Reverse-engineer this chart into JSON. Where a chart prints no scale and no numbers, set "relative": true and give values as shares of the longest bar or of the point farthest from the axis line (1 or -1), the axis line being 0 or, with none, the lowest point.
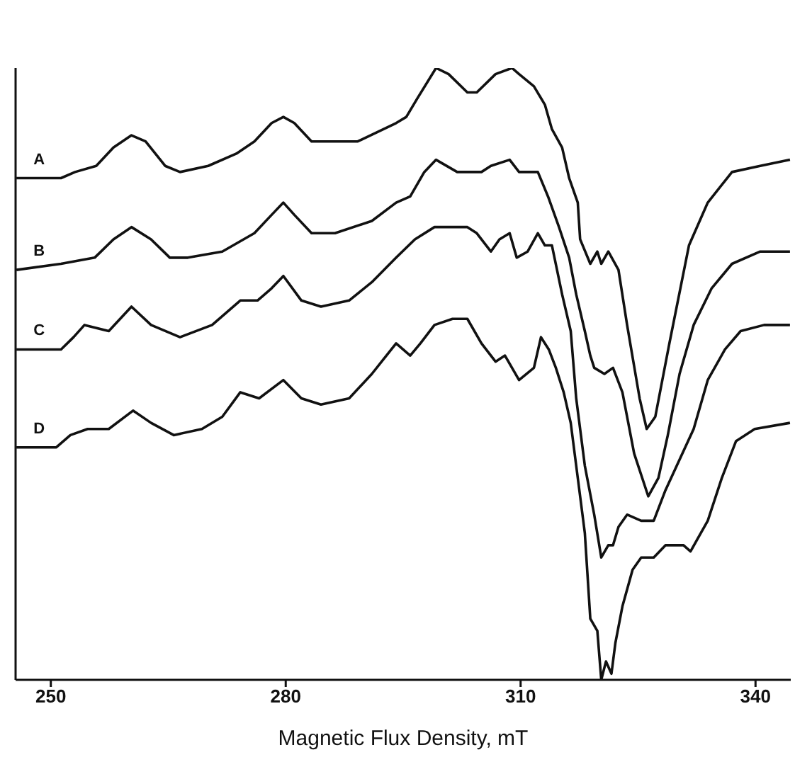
{
  "chart_data": {
    "type": "line",
    "xlabel": "Magnetic Flux Density, mT",
    "relative": true,
    "xlim": [
      245.5,
      344.5
    ],
    "xticks": [
      250,
      280,
      310,
      340
    ],
    "grid": false,
    "legend": false,
    "marker": "none",
    "line_style": "solid",
    "series": [
      {
        "name": "A",
        "color": "#111111",
        "x": [
          245.6,
          251.3,
          253.1,
          255.8,
          258.0,
          260.3,
          262.1,
          264.6,
          266.5,
          270.1,
          273.7,
          276.0,
          278.2,
          279.7,
          281.1,
          283.3,
          285.6,
          289.2,
          294.1,
          295.4,
          296.8,
          299.2,
          300.8,
          303.2,
          304.4,
          306.8,
          308.9,
          309.8,
          311.7,
          313.1,
          314.0,
          315.3,
          316.2,
          317.3,
          317.6,
          318.9,
          319.8,
          320.3,
          321.2,
          322.5,
          323.6,
          325.2,
          326.1,
          327.2,
          329.0,
          331.5,
          333.9,
          337.0,
          340.6,
          344.4
        ],
        "values": [
          0.82,
          0.82,
          0.83,
          0.84,
          0.87,
          0.89,
          0.88,
          0.84,
          0.83,
          0.84,
          0.86,
          0.88,
          0.91,
          0.92,
          0.91,
          0.88,
          0.88,
          0.88,
          0.91,
          0.92,
          0.95,
          1.0,
          0.99,
          0.96,
          0.96,
          0.99,
          1.0,
          0.99,
          0.97,
          0.94,
          0.9,
          0.87,
          0.82,
          0.78,
          0.72,
          0.68,
          0.7,
          0.68,
          0.7,
          0.67,
          0.58,
          0.46,
          0.41,
          0.43,
          0.55,
          0.71,
          0.78,
          0.83,
          0.84,
          0.85
        ]
      },
      {
        "name": "B",
        "color": "#111111",
        "x": [
          245.6,
          251.3,
          255.6,
          258.0,
          260.3,
          262.8,
          265.2,
          267.5,
          271.9,
          276.0,
          278.2,
          279.7,
          281.1,
          283.3,
          286.3,
          291.0,
          294.1,
          295.9,
          297.7,
          299.2,
          301.9,
          305.0,
          306.2,
          308.6,
          309.8,
          312.2,
          313.5,
          314.9,
          316.2,
          317.1,
          318.2,
          318.9,
          319.4,
          320.7,
          321.8,
          323.0,
          324.5,
          326.3,
          327.6,
          328.8,
          330.3,
          332.1,
          334.4,
          337.0,
          340.6,
          344.4
        ],
        "values": [
          0.67,
          0.68,
          0.69,
          0.72,
          0.74,
          0.72,
          0.69,
          0.69,
          0.7,
          0.73,
          0.76,
          0.78,
          0.76,
          0.73,
          0.73,
          0.75,
          0.78,
          0.79,
          0.83,
          0.85,
          0.83,
          0.83,
          0.84,
          0.85,
          0.83,
          0.83,
          0.79,
          0.74,
          0.69,
          0.63,
          0.57,
          0.53,
          0.51,
          0.5,
          0.51,
          0.47,
          0.37,
          0.3,
          0.33,
          0.4,
          0.5,
          0.58,
          0.64,
          0.68,
          0.7,
          0.7
        ]
      },
      {
        "name": "C",
        "color": "#111111",
        "x": [
          245.6,
          251.3,
          252.9,
          254.3,
          257.4,
          260.3,
          262.8,
          266.5,
          270.6,
          272.4,
          274.2,
          276.4,
          278.2,
          279.7,
          282.0,
          284.5,
          288.1,
          291.0,
          294.1,
          296.5,
          299.0,
          301.3,
          303.2,
          304.4,
          306.2,
          307.3,
          308.6,
          309.5,
          310.9,
          312.2,
          313.1,
          314.0,
          315.3,
          316.4,
          317.1,
          318.2,
          319.4,
          320.3,
          321.2,
          321.8,
          322.5,
          323.6,
          325.4,
          327.0,
          328.5,
          330.3,
          332.1,
          333.9,
          336.1,
          338.1,
          341.1,
          344.4
        ],
        "values": [
          0.54,
          0.54,
          0.56,
          0.58,
          0.57,
          0.61,
          0.58,
          0.56,
          0.58,
          0.6,
          0.62,
          0.62,
          0.64,
          0.66,
          0.62,
          0.61,
          0.62,
          0.65,
          0.69,
          0.72,
          0.74,
          0.74,
          0.74,
          0.73,
          0.7,
          0.72,
          0.73,
          0.69,
          0.7,
          0.73,
          0.71,
          0.71,
          0.63,
          0.57,
          0.46,
          0.35,
          0.27,
          0.2,
          0.22,
          0.22,
          0.25,
          0.27,
          0.26,
          0.26,
          0.31,
          0.36,
          0.41,
          0.49,
          0.54,
          0.57,
          0.58,
          0.58
        ]
      },
      {
        "name": "D",
        "color": "#111111",
        "x": [
          245.6,
          250.7,
          252.5,
          254.7,
          257.4,
          260.5,
          262.8,
          265.7,
          269.3,
          271.9,
          274.2,
          276.6,
          279.7,
          282.0,
          284.5,
          288.1,
          291.0,
          294.1,
          295.9,
          297.2,
          299.0,
          301.3,
          303.2,
          305.0,
          306.8,
          308.0,
          308.9,
          309.8,
          311.7,
          312.6,
          313.6,
          314.5,
          315.5,
          316.4,
          317.3,
          318.2,
          318.9,
          319.8,
          320.3,
          320.9,
          321.6,
          322.1,
          323.0,
          324.3,
          325.4,
          327.0,
          328.5,
          330.8,
          331.7,
          333.9,
          335.7,
          337.5,
          339.9,
          344.4
        ],
        "values": [
          0.38,
          0.38,
          0.4,
          0.41,
          0.41,
          0.44,
          0.42,
          0.4,
          0.41,
          0.43,
          0.47,
          0.46,
          0.49,
          0.46,
          0.45,
          0.46,
          0.5,
          0.55,
          0.53,
          0.55,
          0.58,
          0.59,
          0.59,
          0.55,
          0.52,
          0.53,
          0.51,
          0.49,
          0.51,
          0.56,
          0.54,
          0.51,
          0.47,
          0.42,
          0.33,
          0.24,
          0.1,
          0.08,
          0,
          0.03,
          0.01,
          0.06,
          0.12,
          0.18,
          0.2,
          0.2,
          0.22,
          0.22,
          0.21,
          0.26,
          0.33,
          0.39,
          0.41,
          0.42
        ]
      }
    ]
  }
}
